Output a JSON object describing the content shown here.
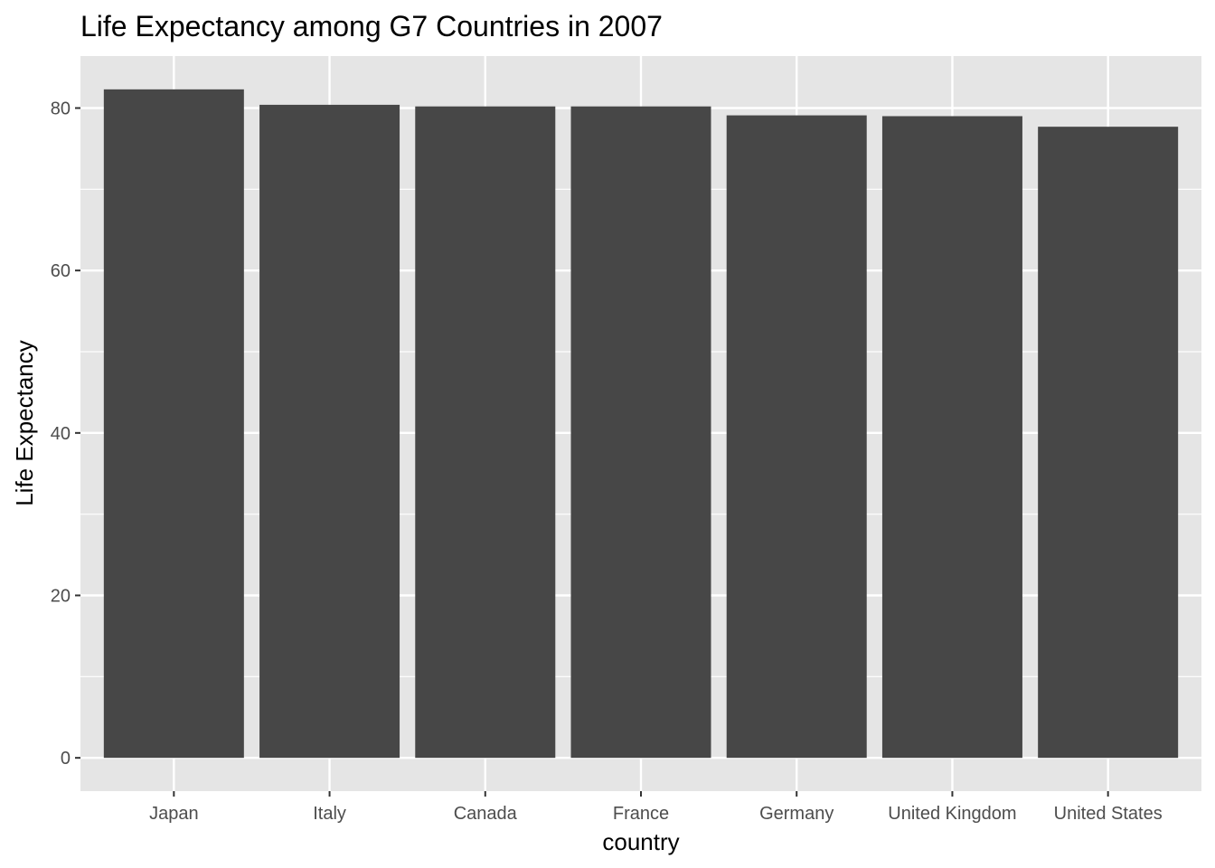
{
  "chart_data": {
    "type": "bar",
    "title": "Life Expectancy among G7 Countries in 2007",
    "xlabel": "country",
    "ylabel": "Life Expectancy",
    "categories": [
      "Japan",
      "Italy",
      "Canada",
      "France",
      "Germany",
      "United Kingdom",
      "United States"
    ],
    "values": [
      82.3,
      80.4,
      80.2,
      80.2,
      79.1,
      79.0,
      77.7
    ],
    "ylim": [
      -4.1,
      86.4
    ],
    "yticks": [
      0,
      20,
      40,
      60,
      80
    ],
    "grid": true,
    "legend": "none",
    "colors": {
      "bar": "#474747",
      "panel": "#e5e5e5",
      "grid": "#ffffff"
    }
  }
}
